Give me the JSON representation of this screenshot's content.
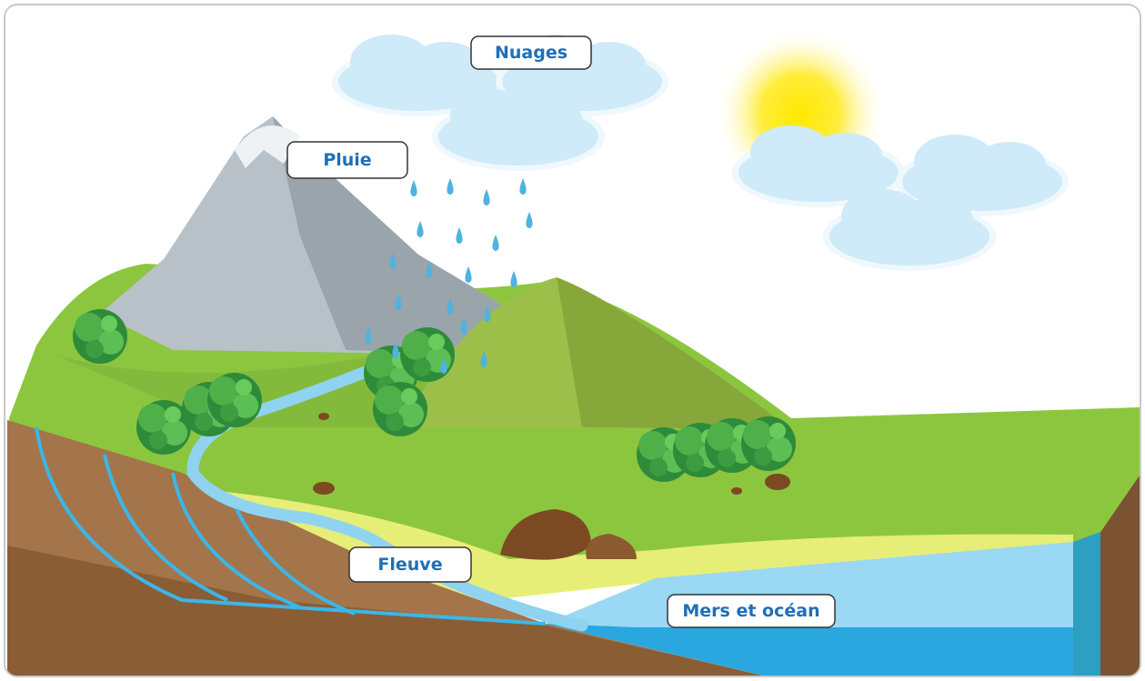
{
  "nodes": [
    {
      "label": "Nuages"
    },
    {
      "label": "Pluie"
    },
    {
      "label": "Fleuve"
    },
    {
      "label": "Mers et océan"
    }
  ]
}
